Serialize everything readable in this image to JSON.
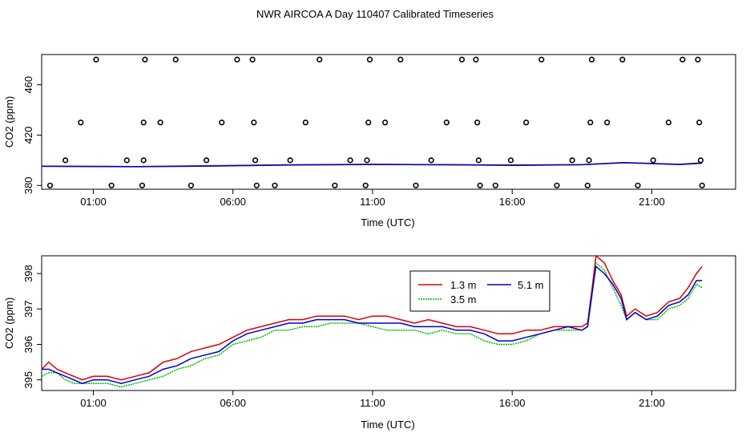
{
  "title": "NWR AIRCOA A  Day 110407  Calibrated Timeseries",
  "colors": {
    "s1": "#dd0000",
    "s2": "#00bb00",
    "s3": "#0000cc",
    "axis": "#000000"
  },
  "chart_data": [
    {
      "type": "scatter",
      "title": "",
      "xlabel": "Time (UTC)",
      "ylabel": "CO2 (ppm)",
      "xlim": [
        -0.85,
        24.0
      ],
      "ylim": [
        377,
        484
      ],
      "xticks": [
        1,
        6,
        11,
        16,
        21
      ],
      "xtick_labels": [
        "01:00",
        "06:00",
        "11:00",
        "16:00",
        "21:00"
      ],
      "yticks": [
        380,
        420,
        460
      ],
      "ytick_labels": [
        "380",
        "420",
        "460"
      ],
      "points": [
        [
          -0.55,
          380
        ],
        [
          0.0,
          400
        ],
        [
          0.55,
          430
        ],
        [
          1.1,
          480
        ],
        [
          1.65,
          380
        ],
        [
          2.2,
          400
        ],
        [
          2.75,
          380
        ],
        [
          2.8,
          400
        ],
        [
          2.8,
          430
        ],
        [
          2.85,
          480
        ],
        [
          3.4,
          430
        ],
        [
          3.95,
          480
        ],
        [
          4.5,
          380
        ],
        [
          5.05,
          400
        ],
        [
          5.6,
          430
        ],
        [
          6.15,
          480
        ],
        [
          6.7,
          480
        ],
        [
          6.75,
          430
        ],
        [
          6.8,
          400
        ],
        [
          6.85,
          380
        ],
        [
          7.5,
          380
        ],
        [
          8.05,
          400
        ],
        [
          8.6,
          430
        ],
        [
          9.1,
          480
        ],
        [
          9.65,
          380
        ],
        [
          10.2,
          400
        ],
        [
          10.75,
          380
        ],
        [
          10.8,
          400
        ],
        [
          10.85,
          430
        ],
        [
          10.9,
          480
        ],
        [
          11.45,
          430
        ],
        [
          12.0,
          480
        ],
        [
          12.55,
          380
        ],
        [
          13.1,
          400
        ],
        [
          13.65,
          430
        ],
        [
          14.2,
          480
        ],
        [
          14.7,
          480
        ],
        [
          14.75,
          430
        ],
        [
          14.8,
          400
        ],
        [
          14.85,
          380
        ],
        [
          15.4,
          380
        ],
        [
          15.95,
          400
        ],
        [
          16.5,
          430
        ],
        [
          17.05,
          480
        ],
        [
          17.6,
          380
        ],
        [
          18.15,
          400
        ],
        [
          18.7,
          380
        ],
        [
          18.75,
          400
        ],
        [
          18.8,
          430
        ],
        [
          18.85,
          480
        ],
        [
          19.4,
          430
        ],
        [
          19.95,
          480
        ],
        [
          20.5,
          380
        ],
        [
          21.05,
          400
        ],
        [
          21.6,
          430
        ],
        [
          22.1,
          480
        ],
        [
          22.65,
          480
        ],
        [
          22.7,
          430
        ],
        [
          22.75,
          400
        ],
        [
          22.8,
          380
        ]
      ],
      "series": [
        {
          "name": "1.3 m",
          "x": [
            -0.85,
            2.5,
            5,
            8,
            11,
            14,
            16,
            18.5,
            20,
            22,
            22.8
          ],
          "values": [
            395.3,
            395.0,
            395.6,
            396.4,
            396.8,
            396.4,
            396.3,
            396.5,
            398.2,
            396.8,
            398.0
          ]
        },
        {
          "name": "3.5 m",
          "x": [
            -0.85,
            2.5,
            5,
            8,
            11,
            14,
            16,
            18.5,
            20,
            22,
            22.8
          ],
          "values": [
            395.1,
            394.9,
            395.3,
            396.2,
            396.6,
            396.3,
            395.9,
            396.4,
            398.0,
            396.6,
            397.6
          ]
        },
        {
          "name": "5.1 m",
          "x": [
            -0.85,
            2.5,
            5,
            8,
            11,
            14,
            16,
            18.5,
            20,
            22,
            22.8
          ],
          "values": [
            395.3,
            394.9,
            395.4,
            396.3,
            396.7,
            396.4,
            396.0,
            396.5,
            398.1,
            396.7,
            397.7
          ]
        }
      ]
    },
    {
      "type": "line",
      "title": "",
      "xlabel": "Time (UTC)",
      "ylabel": "CO2 (ppm)",
      "xlim": [
        -0.85,
        24.0
      ],
      "ylim": [
        394.7,
        398.5
      ],
      "xticks": [
        1,
        6,
        11,
        16,
        21
      ],
      "xtick_labels": [
        "01:00",
        "06:00",
        "11:00",
        "16:00",
        "21:00"
      ],
      "yticks": [
        395,
        396,
        397,
        398
      ],
      "ytick_labels": [
        "395",
        "396",
        "397",
        "398"
      ],
      "legend": {
        "position": "top-right",
        "entries": [
          "1.3 m",
          "5.1 m",
          "3.5 m"
        ]
      },
      "series": [
        {
          "name": "1.3 m",
          "x": [
            -0.85,
            -0.6,
            -0.3,
            0.0,
            0.3,
            0.6,
            1.0,
            1.5,
            2.0,
            2.5,
            3.0,
            3.5,
            4.0,
            4.5,
            5.0,
            5.5,
            6.0,
            6.5,
            7.0,
            7.5,
            8.0,
            8.5,
            9.0,
            9.5,
            10.0,
            10.5,
            11.0,
            11.5,
            12.0,
            12.5,
            13.0,
            13.5,
            14.0,
            14.5,
            15.0,
            15.5,
            16.0,
            16.5,
            17.0,
            17.5,
            18.0,
            18.5,
            18.7,
            18.85,
            19.0,
            19.3,
            19.6,
            19.9,
            20.1,
            20.4,
            20.8,
            21.2,
            21.6,
            22.0,
            22.3,
            22.6,
            22.8
          ],
          "values": [
            395.3,
            395.5,
            395.3,
            395.2,
            395.1,
            395.0,
            395.1,
            395.1,
            395.0,
            395.1,
            395.2,
            395.5,
            395.6,
            395.8,
            395.9,
            396.0,
            396.2,
            396.4,
            396.5,
            396.6,
            396.7,
            396.7,
            396.8,
            396.8,
            396.8,
            396.7,
            396.8,
            396.8,
            396.7,
            396.6,
            396.7,
            396.6,
            396.5,
            396.5,
            396.4,
            396.3,
            396.3,
            396.4,
            396.4,
            396.5,
            396.5,
            396.5,
            396.6,
            397.5,
            398.5,
            398.3,
            397.8,
            397.4,
            396.8,
            397.0,
            396.8,
            396.9,
            397.2,
            397.3,
            397.6,
            398.0,
            398.2
          ]
        },
        {
          "name": "3.5 m",
          "x": [
            -0.85,
            -0.6,
            -0.3,
            0.0,
            0.3,
            0.6,
            1.0,
            1.5,
            2.0,
            2.5,
            3.0,
            3.5,
            4.0,
            4.5,
            5.0,
            5.5,
            6.0,
            6.5,
            7.0,
            7.5,
            8.0,
            8.5,
            9.0,
            9.5,
            10.0,
            10.5,
            11.0,
            11.5,
            12.0,
            12.5,
            13.0,
            13.5,
            14.0,
            14.5,
            15.0,
            15.5,
            16.0,
            16.5,
            17.0,
            17.5,
            18.0,
            18.5,
            18.7,
            18.85,
            19.0,
            19.3,
            19.6,
            19.9,
            20.1,
            20.4,
            20.8,
            21.2,
            21.6,
            22.0,
            22.3,
            22.6,
            22.8
          ],
          "values": [
            395.1,
            395.2,
            395.2,
            395.0,
            394.9,
            394.9,
            394.9,
            394.9,
            394.8,
            394.9,
            395.0,
            395.1,
            395.3,
            395.4,
            395.6,
            395.7,
            396.0,
            396.1,
            396.2,
            396.4,
            396.4,
            396.5,
            396.5,
            396.6,
            396.6,
            396.6,
            396.5,
            396.4,
            396.4,
            396.4,
            396.3,
            396.4,
            396.3,
            396.3,
            396.1,
            396.0,
            396.0,
            396.1,
            396.3,
            396.4,
            396.4,
            396.4,
            396.5,
            397.3,
            398.3,
            398.1,
            397.6,
            397.1,
            396.7,
            396.9,
            396.7,
            396.7,
            397.0,
            397.1,
            397.3,
            397.7,
            397.6
          ]
        },
        {
          "name": "5.1 m",
          "x": [
            -0.85,
            -0.6,
            -0.3,
            0.0,
            0.3,
            0.6,
            1.0,
            1.5,
            2.0,
            2.5,
            3.0,
            3.5,
            4.0,
            4.5,
            5.0,
            5.5,
            6.0,
            6.5,
            7.0,
            7.5,
            8.0,
            8.5,
            9.0,
            9.5,
            10.0,
            10.5,
            11.0,
            11.5,
            12.0,
            12.5,
            13.0,
            13.5,
            14.0,
            14.5,
            15.0,
            15.5,
            16.0,
            16.5,
            17.0,
            17.5,
            18.0,
            18.5,
            18.7,
            18.85,
            19.0,
            19.3,
            19.6,
            19.9,
            20.1,
            20.4,
            20.8,
            21.2,
            21.6,
            22.0,
            22.3,
            22.6,
            22.8
          ],
          "values": [
            395.3,
            395.3,
            395.2,
            395.1,
            395.0,
            394.9,
            395.0,
            395.0,
            394.9,
            395.0,
            395.1,
            395.3,
            395.4,
            395.6,
            395.7,
            395.8,
            396.1,
            396.3,
            396.4,
            396.5,
            396.6,
            396.6,
            396.7,
            396.7,
            396.7,
            396.6,
            396.6,
            396.6,
            396.6,
            396.5,
            396.5,
            396.5,
            396.4,
            396.4,
            396.3,
            396.1,
            396.1,
            396.2,
            396.3,
            396.4,
            396.5,
            396.4,
            396.5,
            397.4,
            398.2,
            398.0,
            397.7,
            397.3,
            396.7,
            396.9,
            396.7,
            396.8,
            397.1,
            397.2,
            397.4,
            397.8,
            397.8
          ]
        }
      ]
    }
  ]
}
